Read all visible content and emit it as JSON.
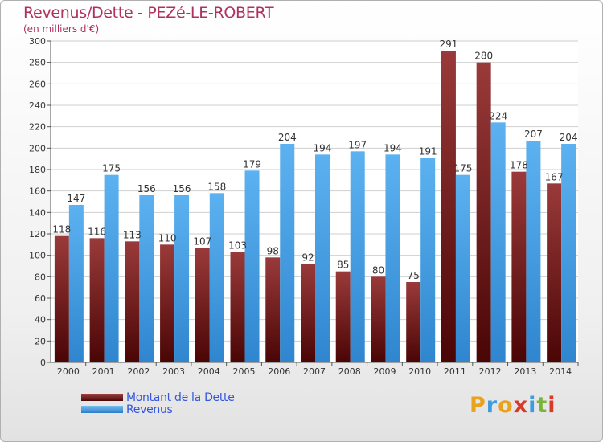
{
  "header": {
    "title": "Revenus/Dette - PEZé-LE-ROBERT",
    "subtitle": "(en milliers d'€)"
  },
  "colors": {
    "dette": "#7a1f1f",
    "revenus": "#4da3e6",
    "title": "#b03060",
    "legend_text": "#3355dd"
  },
  "legend": {
    "dette_label": "Montant de la Dette",
    "revenus_label": "Revenus"
  },
  "logo": {
    "letters": [
      "P",
      "r",
      "o",
      "x",
      "i",
      "t",
      "i"
    ],
    "colors": [
      "#e8a21e",
      "#3f9be0",
      "#e8a21e",
      "#d83a2a",
      "#3f9be0",
      "#79b53a",
      "#d83a2a"
    ]
  },
  "chart_data": {
    "type": "bar",
    "categories": [
      "2000",
      "2001",
      "2002",
      "2003",
      "2004",
      "2005",
      "2006",
      "2007",
      "2008",
      "2009",
      "2010",
      "2011",
      "2012",
      "2013",
      "2014"
    ],
    "series": [
      {
        "name": "Montant de la Dette",
        "values": [
          118,
          116,
          113,
          110,
          107,
          103,
          98,
          92,
          85,
          80,
          75,
          291,
          280,
          178,
          167
        ]
      },
      {
        "name": "Revenus",
        "values": [
          147,
          175,
          156,
          156,
          158,
          179,
          204,
          194,
          197,
          194,
          191,
          175,
          224,
          207,
          204
        ]
      }
    ],
    "ylim": [
      0,
      300
    ],
    "yticks": [
      "0",
      "20",
      "40",
      "60",
      "80",
      "100",
      "120",
      "140",
      "160",
      "180",
      "200",
      "220",
      "240",
      "260",
      "280",
      "300"
    ],
    "grid": true
  }
}
